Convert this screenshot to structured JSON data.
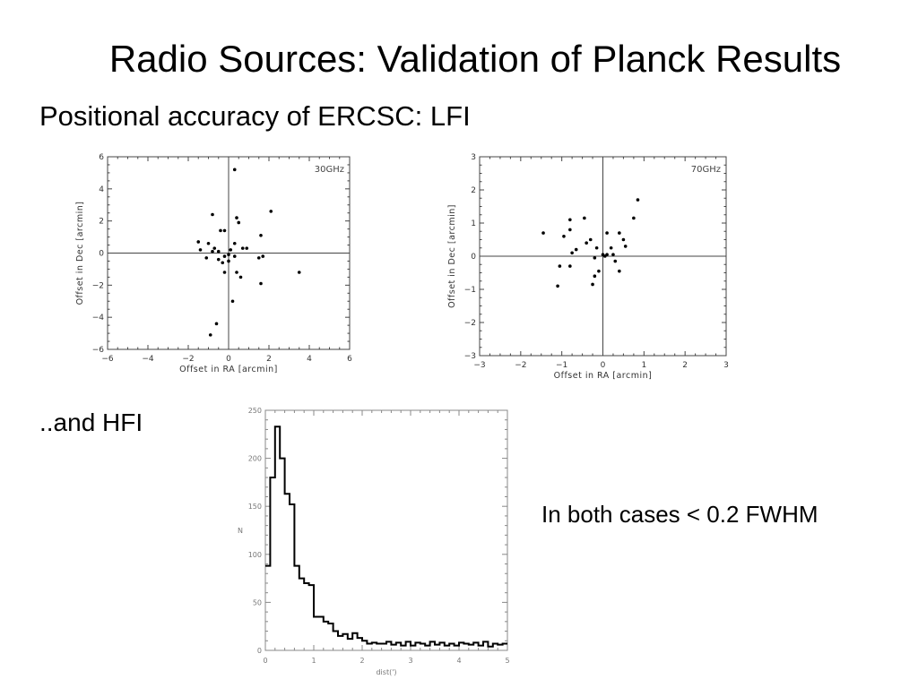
{
  "slide": {
    "title": "Radio Sources: Validation of Planck Results",
    "subtitle": "Positional accuracy of ERCSC: LFI",
    "hfi_label": "..and HFI",
    "note": "In both cases < 0.2 FWHM"
  },
  "chart_data": [
    {
      "type": "scatter",
      "annotation": "30GHz",
      "xlabel": "Offset in RA [arcmin]",
      "ylabel": "Offset in Dec [arcmin]",
      "xlim": [
        -6,
        6
      ],
      "ylim": [
        -6,
        6
      ],
      "xticks": [
        -6,
        -4,
        -2,
        0,
        2,
        4,
        6
      ],
      "yticks": [
        -6,
        -4,
        -2,
        0,
        2,
        4,
        6
      ],
      "grid": false,
      "zero_lines": true,
      "points": [
        [
          0.3,
          5.2
        ],
        [
          -0.8,
          2.4
        ],
        [
          0.4,
          2.2
        ],
        [
          0.5,
          1.9
        ],
        [
          2.1,
          2.6
        ],
        [
          -0.4,
          1.4
        ],
        [
          -0.2,
          1.4
        ],
        [
          1.6,
          1.1
        ],
        [
          -1.5,
          0.7
        ],
        [
          -1.0,
          0.6
        ],
        [
          0.3,
          0.6
        ],
        [
          0.9,
          0.3
        ],
        [
          -0.7,
          0.3
        ],
        [
          -1.4,
          0.2
        ],
        [
          -0.8,
          0.1
        ],
        [
          -0.5,
          0.1
        ],
        [
          0.1,
          0.2
        ],
        [
          0.7,
          0.3
        ],
        [
          0.0,
          -0.1
        ],
        [
          -0.2,
          -0.2
        ],
        [
          0.3,
          -0.2
        ],
        [
          -1.1,
          -0.3
        ],
        [
          1.5,
          -0.3
        ],
        [
          1.7,
          -0.2
        ],
        [
          -0.5,
          -0.4
        ],
        [
          -0.3,
          -0.6
        ],
        [
          0.0,
          -0.5
        ],
        [
          -0.2,
          -1.2
        ],
        [
          0.4,
          -1.2
        ],
        [
          0.6,
          -1.5
        ],
        [
          1.6,
          -1.9
        ],
        [
          3.5,
          -1.2
        ],
        [
          0.2,
          -3.0
        ],
        [
          -0.6,
          -4.4
        ],
        [
          -0.9,
          -5.1
        ]
      ]
    },
    {
      "type": "scatter",
      "annotation": "70GHz",
      "xlabel": "Offset in RA [arcmin]",
      "ylabel": "Offset in Dec [arcmin]",
      "xlim": [
        -3,
        3
      ],
      "ylim": [
        -3,
        3
      ],
      "xticks": [
        -3,
        -2,
        -1,
        0,
        1,
        2,
        3
      ],
      "yticks": [
        -3,
        -2,
        -1,
        0,
        1,
        2,
        3
      ],
      "grid": false,
      "zero_lines": true,
      "points": [
        [
          0.85,
          1.7
        ],
        [
          0.75,
          1.15
        ],
        [
          -0.8,
          1.1
        ],
        [
          -0.45,
          1.15
        ],
        [
          -1.45,
          0.7
        ],
        [
          -0.95,
          0.6
        ],
        [
          -0.8,
          0.8
        ],
        [
          0.1,
          0.7
        ],
        [
          0.4,
          0.7
        ],
        [
          -0.3,
          0.5
        ],
        [
          0.5,
          0.5
        ],
        [
          -0.4,
          0.4
        ],
        [
          -0.15,
          0.25
        ],
        [
          0.0,
          0.05
        ],
        [
          0.05,
          0.0
        ],
        [
          0.2,
          0.25
        ],
        [
          -0.65,
          0.2
        ],
        [
          0.25,
          0.05
        ],
        [
          0.55,
          0.3
        ],
        [
          -0.75,
          0.1
        ],
        [
          -0.2,
          -0.05
        ],
        [
          0.1,
          0.05
        ],
        [
          0.3,
          -0.15
        ],
        [
          -0.8,
          -0.3
        ],
        [
          -1.05,
          -0.3
        ],
        [
          0.4,
          -0.45
        ],
        [
          -0.1,
          -0.45
        ],
        [
          -0.2,
          -0.6
        ],
        [
          -0.25,
          -0.85
        ],
        [
          -1.1,
          -0.9
        ]
      ]
    },
    {
      "type": "histogram",
      "xlabel": "dist(')",
      "ylabel": "N",
      "xlim": [
        0,
        5
      ],
      "ylim": [
        0,
        250
      ],
      "xticks": [
        0,
        1,
        2,
        3,
        4,
        5
      ],
      "xtick_labels": [
        "0",
        "1",
        "2",
        "3",
        "4",
        "5"
      ],
      "yticks": [
        0,
        50,
        100,
        150,
        200,
        250
      ],
      "ytick_labels": [
        "0",
        "50",
        "100",
        "150",
        "200",
        "250"
      ],
      "bin_width": 0.1,
      "values": [
        88,
        180,
        233,
        200,
        163,
        152,
        88,
        75,
        70,
        68,
        35,
        35,
        30,
        28,
        20,
        15,
        17,
        12,
        18,
        13,
        10,
        7,
        8,
        7,
        7,
        9,
        6,
        8,
        5,
        9,
        5,
        8,
        7,
        5,
        9,
        6,
        8,
        5,
        7,
        5,
        8,
        7,
        6,
        8,
        5,
        9,
        4,
        7,
        6,
        7
      ]
    }
  ]
}
